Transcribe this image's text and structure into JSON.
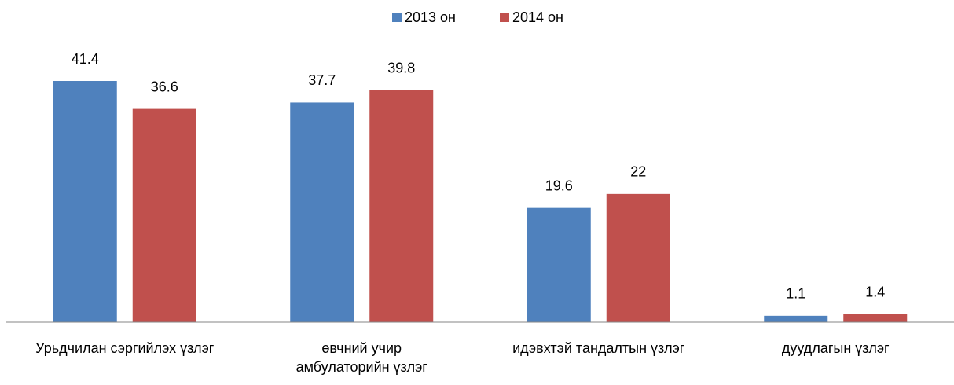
{
  "chart_data": {
    "type": "bar",
    "categories": [
      "Урьдчилан сэргийлэх үзлэг",
      "өвчний учир амбулаторийн үзлэг",
      "идэвхтэй тандалтын үзлэг",
      "дуудлагын үзлэг"
    ],
    "series": [
      {
        "name": "2013 он",
        "color": "#4f81bd",
        "values": [
          41.4,
          37.7,
          19.6,
          1.1
        ]
      },
      {
        "name": "2014 он",
        "color": "#c0504d",
        "values": [
          36.6,
          39.8,
          22,
          1.4
        ]
      }
    ],
    "legend": "top"
  }
}
